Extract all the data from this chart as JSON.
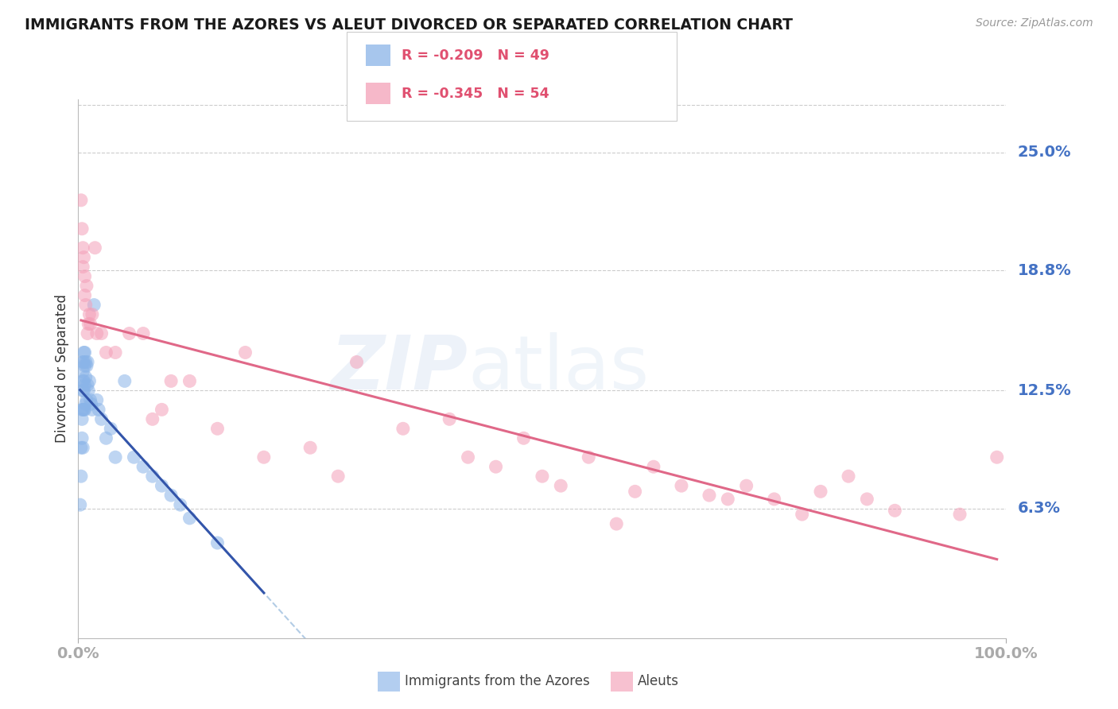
{
  "title": "IMMIGRANTS FROM THE AZORES VS ALEUT DIVORCED OR SEPARATED CORRELATION CHART",
  "source": "Source: ZipAtlas.com",
  "ylabel": "Divorced or Separated",
  "ytick_labels": [
    "25.0%",
    "18.8%",
    "12.5%",
    "6.3%"
  ],
  "ytick_values": [
    0.25,
    0.188,
    0.125,
    0.063
  ],
  "xtick_left": "0.0%",
  "xtick_right": "100.0%",
  "xlim": [
    0.0,
    1.0
  ],
  "ylim": [
    -0.005,
    0.278
  ],
  "series1_name": "Immigrants from the Azores",
  "series1_color": "#8ab4e8",
  "series1_line_color": "#3355aa",
  "series1_dash_color": "#99bbdd",
  "series2_name": "Aleuts",
  "series2_color": "#f4a0b8",
  "series2_line_color": "#e06888",
  "bg_color": "#ffffff",
  "grid_color": "#cccccc",
  "title_color": "#1a1a1a",
  "right_label_color": "#4472c4",
  "legend_text_color": "#e05070",
  "source_color": "#999999",
  "series1_x": [
    0.002,
    0.003,
    0.003,
    0.004,
    0.004,
    0.004,
    0.005,
    0.005,
    0.005,
    0.005,
    0.005,
    0.005,
    0.006,
    0.006,
    0.006,
    0.006,
    0.006,
    0.007,
    0.007,
    0.007,
    0.007,
    0.008,
    0.008,
    0.008,
    0.009,
    0.009,
    0.01,
    0.01,
    0.011,
    0.012,
    0.013,
    0.014,
    0.015,
    0.017,
    0.02,
    0.022,
    0.025,
    0.03,
    0.035,
    0.04,
    0.05,
    0.06,
    0.07,
    0.08,
    0.09,
    0.1,
    0.11,
    0.12,
    0.15
  ],
  "series1_y": [
    0.065,
    0.095,
    0.08,
    0.115,
    0.11,
    0.1,
    0.14,
    0.135,
    0.13,
    0.125,
    0.115,
    0.095,
    0.145,
    0.14,
    0.13,
    0.125,
    0.115,
    0.145,
    0.138,
    0.128,
    0.115,
    0.14,
    0.132,
    0.118,
    0.138,
    0.12,
    0.14,
    0.128,
    0.125,
    0.13,
    0.12,
    0.118,
    0.115,
    0.17,
    0.12,
    0.115,
    0.11,
    0.1,
    0.105,
    0.09,
    0.13,
    0.09,
    0.085,
    0.08,
    0.075,
    0.07,
    0.065,
    0.058,
    0.045
  ],
  "series2_x": [
    0.003,
    0.004,
    0.005,
    0.005,
    0.006,
    0.007,
    0.007,
    0.008,
    0.009,
    0.01,
    0.011,
    0.012,
    0.013,
    0.015,
    0.018,
    0.02,
    0.025,
    0.03,
    0.04,
    0.055,
    0.07,
    0.08,
    0.09,
    0.1,
    0.12,
    0.15,
    0.18,
    0.2,
    0.25,
    0.28,
    0.3,
    0.35,
    0.4,
    0.42,
    0.45,
    0.48,
    0.5,
    0.52,
    0.55,
    0.58,
    0.6,
    0.62,
    0.65,
    0.68,
    0.7,
    0.72,
    0.75,
    0.78,
    0.8,
    0.83,
    0.85,
    0.88,
    0.95,
    0.99
  ],
  "series2_y": [
    0.225,
    0.21,
    0.2,
    0.19,
    0.195,
    0.185,
    0.175,
    0.17,
    0.18,
    0.155,
    0.16,
    0.165,
    0.16,
    0.165,
    0.2,
    0.155,
    0.155,
    0.145,
    0.145,
    0.155,
    0.155,
    0.11,
    0.115,
    0.13,
    0.13,
    0.105,
    0.145,
    0.09,
    0.095,
    0.08,
    0.14,
    0.105,
    0.11,
    0.09,
    0.085,
    0.1,
    0.08,
    0.075,
    0.09,
    0.055,
    0.072,
    0.085,
    0.075,
    0.07,
    0.068,
    0.075,
    0.068,
    0.06,
    0.072,
    0.08,
    0.068,
    0.062,
    0.06,
    0.09
  ]
}
